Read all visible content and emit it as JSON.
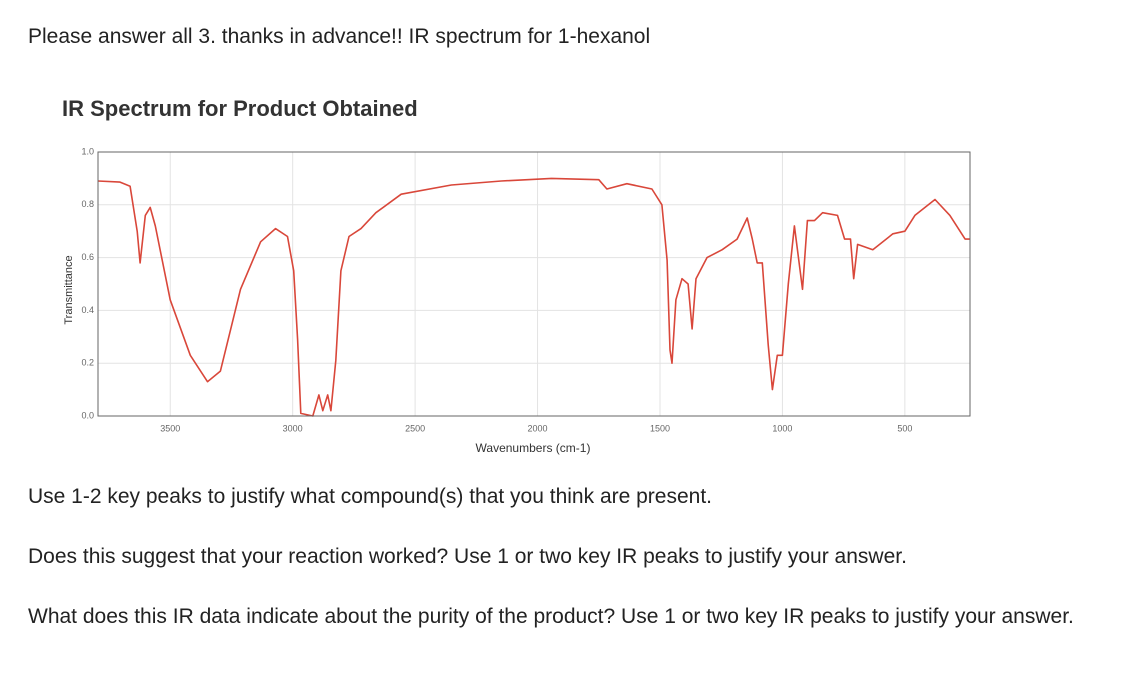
{
  "header": {
    "title": "Please answer all 3. thanks in advance!! IR spectrum for 1-hexanol"
  },
  "chart_data": {
    "type": "line",
    "title": "IR Spectrum for Product Obtained",
    "x_label": "Wavenumbers (cm-1)",
    "y_label": "Transmittance",
    "xlim": [
      3795,
      234
    ],
    "ylim": [
      0,
      1
    ],
    "xticks": [
      3500,
      3000,
      2500,
      2000,
      1500,
      1000,
      500
    ],
    "yticks": [
      {
        "value": 0,
        "label": "0.0"
      },
      0.2,
      0.4,
      0.6,
      0.8,
      {
        "value": 1,
        "label": "1.0"
      }
    ],
    "grid": true,
    "x": [
      3795,
      3705,
      3664,
      3635,
      3623,
      3602,
      3582,
      3561,
      3500,
      3418,
      3348,
      3295,
      3213,
      3131,
      3070,
      3021,
      2996,
      2980,
      2967,
      2918,
      2893,
      2877,
      2857,
      2844,
      2824,
      2803,
      2770,
      2721,
      2660,
      2557,
      2352,
      2148,
      1943,
      1750,
      1717,
      1635,
      1533,
      1492,
      1471,
      1459,
      1451,
      1435,
      1410,
      1385,
      1369,
      1353,
      1308,
      1246,
      1185,
      1144,
      1123,
      1103,
      1082,
      1058,
      1041,
      1021,
      1000,
      976,
      951,
      918,
      898,
      869,
      836,
      775,
      746,
      722,
      709,
      693,
      631,
      549,
      500,
      459,
      377,
      316,
      254,
      234
    ],
    "series": [
      {
        "name": "Transmittance",
        "color": "#d9473a",
        "values": [
          0.89,
          0.886,
          0.87,
          0.7,
          0.58,
          0.76,
          0.79,
          0.72,
          0.44,
          0.23,
          0.13,
          0.17,
          0.48,
          0.66,
          0.71,
          0.68,
          0.55,
          0.29,
          0.01,
          0.0,
          0.08,
          0.02,
          0.08,
          0.02,
          0.21,
          0.55,
          0.68,
          0.71,
          0.77,
          0.84,
          0.875,
          0.89,
          0.9,
          0.895,
          0.86,
          0.88,
          0.86,
          0.8,
          0.59,
          0.25,
          0.2,
          0.44,
          0.52,
          0.5,
          0.33,
          0.52,
          0.6,
          0.63,
          0.67,
          0.75,
          0.67,
          0.58,
          0.58,
          0.27,
          0.1,
          0.23,
          0.23,
          0.5,
          0.72,
          0.48,
          0.74,
          0.74,
          0.77,
          0.76,
          0.67,
          0.67,
          0.52,
          0.65,
          0.63,
          0.69,
          0.7,
          0.76,
          0.82,
          0.76,
          0.67,
          0.67
        ]
      }
    ]
  },
  "questions": [
    "Use 1-2 key peaks to justify what compound(s) that you think are present.",
    "Does this suggest that your reaction worked? Use 1 or two key IR peaks to justify your answer.",
    "What does this IR data indicate about the purity of the product? Use 1 or two key IR peaks to justify your answer."
  ]
}
